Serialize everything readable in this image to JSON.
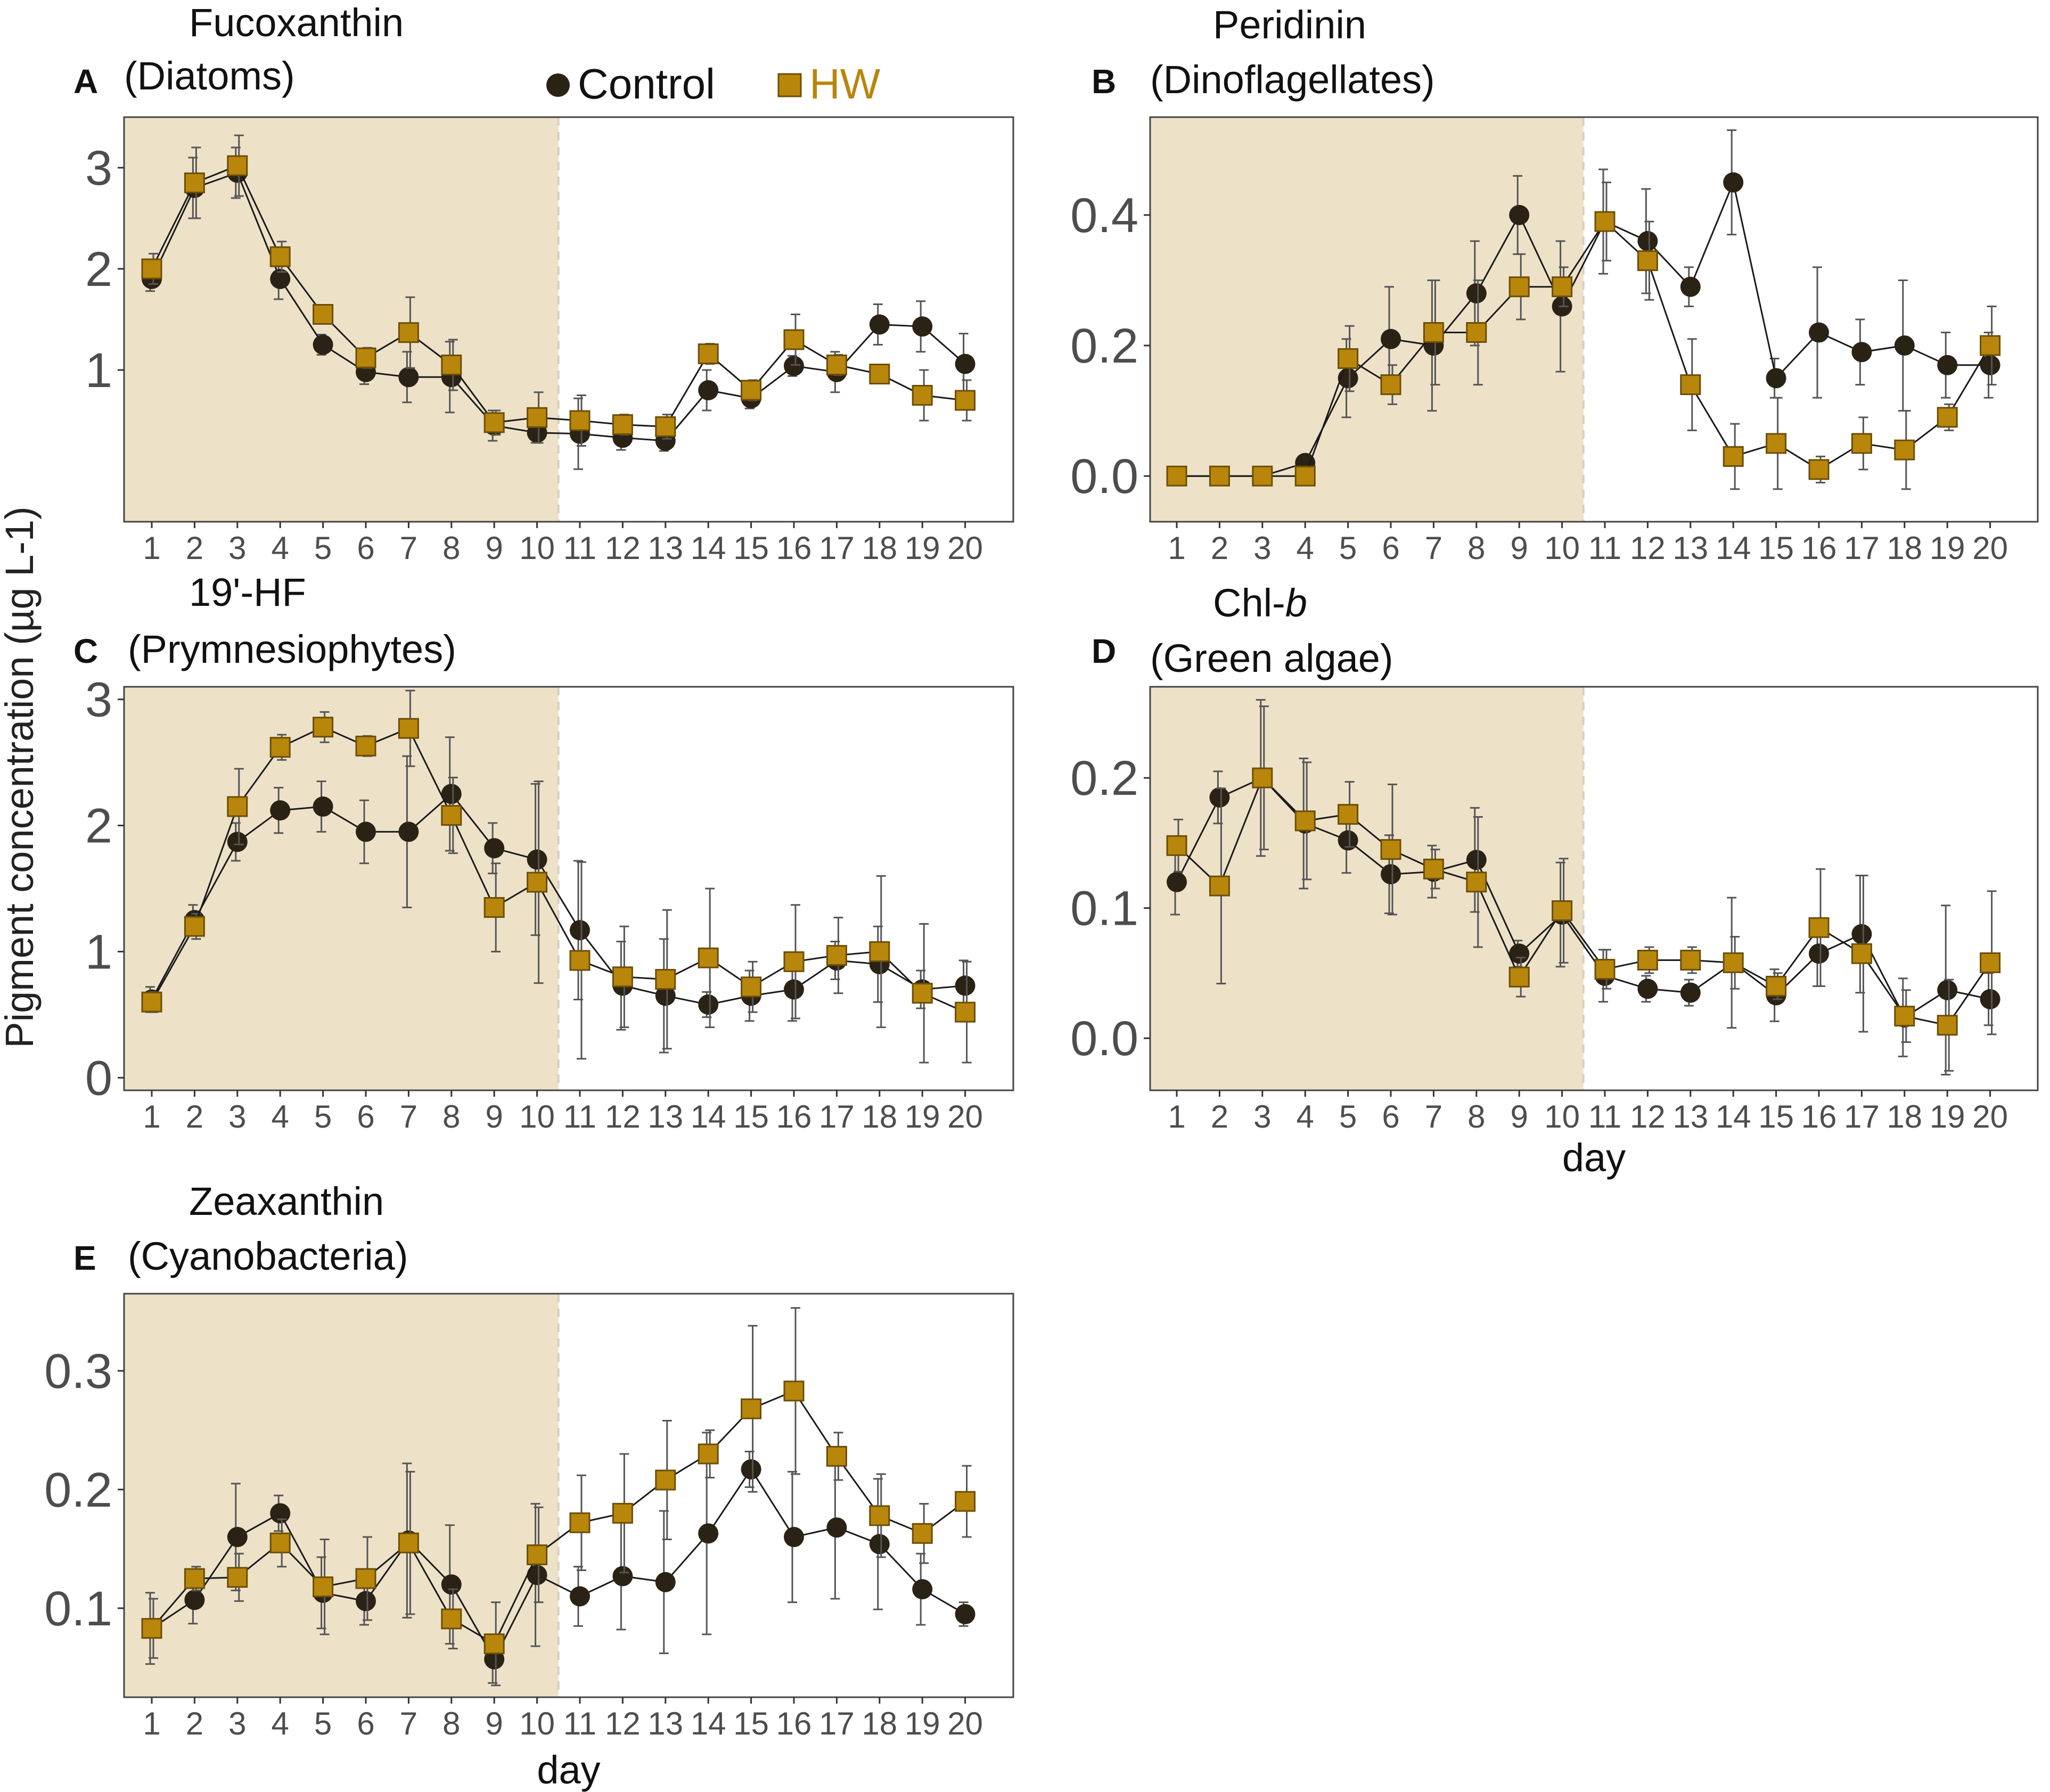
{
  "figure": {
    "y_axis_label": "Pigment concentration (µg L-1)",
    "legend": [
      {
        "name": "Control",
        "marker": "circle",
        "color": "#2b2216"
      },
      {
        "name": "HW",
        "marker": "square",
        "color": "#b8860b"
      }
    ],
    "shade_color": "#ede2c8"
  },
  "chart_data": [
    {
      "type": "line",
      "panel": "A",
      "title": "Fucoxanthin",
      "subtitle": "(Diatoms)",
      "x": [
        1,
        2,
        3,
        4,
        5,
        6,
        7,
        8,
        9,
        10,
        11,
        12,
        13,
        14,
        15,
        16,
        17,
        18,
        19,
        20
      ],
      "xticks": [
        "1",
        "2",
        "3",
        "4",
        "5",
        "6",
        "7",
        "8",
        "9",
        "10",
        "11",
        "12",
        "13",
        "14",
        "15",
        "16",
        "17",
        "18",
        "19",
        "20"
      ],
      "xlabel": "",
      "ylim": [
        -0.5,
        3.5
      ],
      "yticks": [
        1,
        2,
        3
      ],
      "shaded_until_day": 10.5,
      "series": [
        {
          "name": "Control",
          "values": [
            1.9,
            2.8,
            2.95,
            1.9,
            1.25,
            0.98,
            0.93,
            0.93,
            0.45,
            0.38,
            0.37,
            0.33,
            0.3,
            0.8,
            0.72,
            1.04,
            0.98,
            1.45,
            1.43,
            1.06
          ],
          "errors": [
            0.12,
            0.3,
            0.25,
            0.2,
            0.1,
            0.12,
            0.25,
            0.35,
            0.15,
            0.1,
            0.35,
            0.12,
            0.1,
            0.2,
            0.1,
            0.1,
            0.2,
            0.2,
            0.25,
            0.3
          ]
        },
        {
          "name": "HW",
          "values": [
            2.0,
            2.85,
            3.02,
            2.12,
            1.55,
            1.12,
            1.37,
            1.05,
            0.48,
            0.53,
            0.5,
            0.46,
            0.44,
            1.16,
            0.8,
            1.3,
            1.05,
            0.96,
            0.75,
            0.7
          ],
          "errors": [
            0.15,
            0.35,
            0.3,
            0.15,
            0.08,
            0.1,
            0.35,
            0.25,
            0.12,
            0.25,
            0.25,
            0.1,
            0.12,
            0.1,
            0.1,
            0.25,
            0.1,
            0.05,
            0.25,
            0.2
          ]
        }
      ]
    },
    {
      "type": "line",
      "panel": "B",
      "title": "Peridinin",
      "subtitle": "(Dinoflagellates)",
      "x": [
        1,
        2,
        3,
        4,
        5,
        6,
        7,
        8,
        9,
        10,
        11,
        12,
        13,
        14,
        15,
        16,
        17,
        18,
        19,
        20
      ],
      "xticks": [
        "1",
        "2",
        "3",
        "4",
        "5",
        "6",
        "7",
        "8",
        "9",
        "10",
        "11",
        "12",
        "13",
        "14",
        "15",
        "16",
        "17",
        "18",
        "19",
        "20"
      ],
      "xlabel": "",
      "ylim": [
        -0.07,
        0.55
      ],
      "yticks": [
        "0.0",
        "0.2",
        "0.4"
      ],
      "shaded_until_day": 10.5,
      "series": [
        {
          "name": "Control",
          "values": [
            0,
            0,
            0,
            0.02,
            0.15,
            0.21,
            0.2,
            0.28,
            0.4,
            0.26,
            0.39,
            0.36,
            0.29,
            0.45,
            0.15,
            0.22,
            0.19,
            0.2,
            0.17,
            0.17
          ],
          "errors": [
            0,
            0,
            0,
            0.01,
            0.06,
            0.08,
            0.1,
            0.08,
            0.06,
            0.1,
            0.08,
            0.08,
            0.03,
            0.08,
            0.03,
            0.1,
            0.05,
            0.1,
            0.05,
            0.05
          ]
        },
        {
          "name": "HW",
          "values": [
            0,
            0,
            0,
            0,
            0.18,
            0.14,
            0.22,
            0.22,
            0.29,
            0.29,
            0.39,
            0.33,
            0.14,
            0.03,
            0.05,
            0.01,
            0.05,
            0.04,
            0.09,
            0.2
          ],
          "errors": [
            0,
            0,
            0,
            0,
            0.05,
            0.03,
            0.08,
            0.08,
            0.05,
            0.03,
            0.06,
            0.06,
            0.07,
            0.05,
            0.07,
            0.02,
            0.04,
            0.06,
            0.02,
            0.06
          ]
        }
      ]
    },
    {
      "type": "line",
      "panel": "C",
      "title": "19'-HF",
      "subtitle": "(Prymnesiophytes)",
      "x": [
        1,
        2,
        3,
        4,
        5,
        6,
        7,
        8,
        9,
        10,
        11,
        12,
        13,
        14,
        15,
        16,
        17,
        18,
        19,
        20
      ],
      "xticks": [
        "1",
        "2",
        "3",
        "4",
        "5",
        "6",
        "7",
        "8",
        "9",
        "10",
        "11",
        "12",
        "13",
        "14",
        "15",
        "16",
        "17",
        "18",
        "19",
        "20"
      ],
      "xlabel": "",
      "ylim": [
        -0.1,
        3.1
      ],
      "yticks": [
        0,
        1,
        2,
        3
      ],
      "shaded_until_day": 10.5,
      "series": [
        {
          "name": "Control",
          "values": [
            0.62,
            1.25,
            1.87,
            2.12,
            2.15,
            1.95,
            1.95,
            2.25,
            1.82,
            1.73,
            1.17,
            0.73,
            0.65,
            0.58,
            0.65,
            0.7,
            0.93,
            0.9,
            0.7,
            0.73
          ],
          "errors": [
            0.1,
            0.12,
            0.15,
            0.18,
            0.2,
            0.25,
            0.6,
            0.45,
            0.2,
            0.6,
            0.55,
            0.35,
            0.45,
            0.1,
            0.2,
            0.25,
            0.15,
            0.3,
            0.15,
            0.2
          ]
        },
        {
          "name": "HW",
          "values": [
            0.6,
            1.2,
            2.15,
            2.62,
            2.78,
            2.63,
            2.77,
            2.08,
            1.35,
            1.55,
            0.93,
            0.8,
            0.78,
            0.95,
            0.72,
            0.92,
            0.97,
            1.0,
            0.67,
            0.52
          ],
          "errors": [
            0.08,
            0.1,
            0.3,
            0.1,
            0.12,
            0.08,
            0.3,
            0.3,
            0.35,
            0.8,
            0.78,
            0.4,
            0.55,
            0.55,
            0.2,
            0.45,
            0.3,
            0.6,
            0.55,
            0.4
          ]
        }
      ]
    },
    {
      "type": "line",
      "panel": "D",
      "title": "Chl-",
      "title_italic": "b",
      "subtitle": "(Green algae)",
      "x": [
        1,
        2,
        3,
        4,
        5,
        6,
        7,
        8,
        9,
        10,
        11,
        12,
        13,
        14,
        15,
        16,
        17,
        18,
        19,
        20
      ],
      "xticks": [
        "1",
        "2",
        "3",
        "4",
        "5",
        "6",
        "7",
        "8",
        "9",
        "10",
        "11",
        "12",
        "13",
        "14",
        "15",
        "16",
        "17",
        "18",
        "19",
        "20"
      ],
      "xlabel": "day",
      "ylim": [
        -0.04,
        0.27
      ],
      "yticks": [
        "0.0",
        "0.1",
        "0.2"
      ],
      "shaded_until_day": 10.5,
      "series": [
        {
          "name": "Control",
          "values": [
            0.12,
            0.185,
            0.2,
            0.165,
            0.152,
            0.126,
            0.128,
            0.137,
            0.065,
            0.095,
            0.048,
            0.038,
            0.035,
            0.058,
            0.033,
            0.065,
            0.08,
            0.016,
            0.037,
            0.03
          ],
          "errors": [
            0.025,
            0.02,
            0.06,
            0.05,
            0.025,
            0.03,
            0.02,
            0.04,
            0.01,
            0.04,
            0.02,
            0.01,
            0.01,
            0.05,
            0.02,
            0.025,
            0.045,
            0.03,
            0.065,
            0.02
          ]
        },
        {
          "name": "HW",
          "values": [
            0.148,
            0.117,
            0.2,
            0.167,
            0.172,
            0.145,
            0.13,
            0.12,
            0.047,
            0.098,
            0.053,
            0.06,
            0.06,
            0.058,
            0.04,
            0.085,
            0.065,
            0.017,
            0.01,
            0.058
          ],
          "errors": [
            0.02,
            0.075,
            0.055,
            0.045,
            0.025,
            0.05,
            0.015,
            0.05,
            0.015,
            0.04,
            0.015,
            0.01,
            0.01,
            0.02,
            0.01,
            0.045,
            0.06,
            0.02,
            0.035,
            0.055
          ]
        }
      ]
    },
    {
      "type": "line",
      "panel": "E",
      "title": "Zeaxanthin",
      "subtitle": "(Cyanobacteria)",
      "x": [
        1,
        2,
        3,
        4,
        5,
        6,
        7,
        8,
        9,
        10,
        11,
        12,
        13,
        14,
        15,
        16,
        17,
        18,
        19,
        20
      ],
      "xticks": [
        "1",
        "2",
        "3",
        "4",
        "5",
        "6",
        "7",
        "8",
        "9",
        "10",
        "11",
        "12",
        "13",
        "14",
        "15",
        "16",
        "17",
        "18",
        "19",
        "20"
      ],
      "xlabel": "day",
      "ylim": [
        0.025,
        0.365
      ],
      "yticks": [
        "0.1",
        "0.2",
        "0.3"
      ],
      "shaded_until_day": 10.5,
      "series": [
        {
          "name": "Control",
          "values": [
            0.083,
            0.107,
            0.16,
            0.18,
            0.113,
            0.106,
            0.157,
            0.12,
            0.057,
            0.128,
            0.11,
            0.127,
            0.122,
            0.163,
            0.217,
            0.16,
            0.168,
            0.154,
            0.116,
            0.095
          ],
          "errors": [
            0.03,
            0.02,
            0.045,
            0.015,
            0.03,
            0.02,
            0.065,
            0.05,
            0.02,
            0.06,
            0.025,
            0.045,
            0.06,
            0.085,
            0.015,
            0.055,
            0.06,
            0.055,
            0.03,
            0.01
          ]
        },
        {
          "name": "HW",
          "values": [
            0.083,
            0.125,
            0.126,
            0.155,
            0.118,
            0.125,
            0.155,
            0.091,
            0.07,
            0.145,
            0.172,
            0.18,
            0.208,
            0.23,
            0.268,
            0.283,
            0.228,
            0.178,
            0.163,
            0.19
          ],
          "errors": [
            0.025,
            0.01,
            0.02,
            0.02,
            0.04,
            0.035,
            0.06,
            0.025,
            0.035,
            0.04,
            0.04,
            0.05,
            0.05,
            0.02,
            0.07,
            0.07,
            0.02,
            0.035,
            0.025,
            0.03
          ]
        }
      ]
    }
  ]
}
